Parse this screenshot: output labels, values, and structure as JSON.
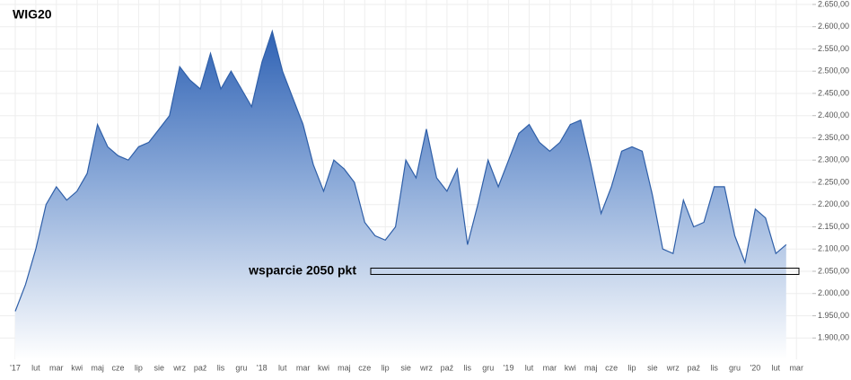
{
  "chart_data": {
    "type": "area",
    "title": "WIG20",
    "categories": [
      "'17",
      null,
      "lut",
      null,
      "mar",
      null,
      "kwi",
      null,
      "maj",
      null,
      "cze",
      null,
      "lip",
      null,
      "sie",
      null,
      "wrz",
      null,
      "paź",
      null,
      "lis",
      null,
      "gru",
      null,
      "'18",
      null,
      "lut",
      null,
      "mar",
      null,
      "kwi",
      null,
      "maj",
      null,
      "cze",
      null,
      "lip",
      null,
      "sie",
      null,
      "wrz",
      null,
      "paź",
      null,
      "lis",
      null,
      "gru",
      null,
      "'19",
      null,
      "lut",
      null,
      "mar",
      null,
      "kwi",
      null,
      "maj",
      null,
      "cze",
      null,
      "lip",
      null,
      "sie",
      null,
      "wrz",
      null,
      "paź",
      null,
      "lis",
      null,
      "gru",
      null,
      "'20",
      null,
      "lut",
      null,
      "mar"
    ],
    "values": [
      1960,
      2020,
      2100,
      2200,
      2240,
      2210,
      2230,
      2270,
      2380,
      2330,
      2310,
      2300,
      2330,
      2340,
      2370,
      2400,
      2510,
      2480,
      2460,
      2540,
      2460,
      2500,
      2460,
      2420,
      2520,
      2590,
      2500,
      2440,
      2380,
      2290,
      2230,
      2300,
      2280,
      2250,
      2160,
      2130,
      2120,
      2150,
      2300,
      2260,
      2370,
      2260,
      2230,
      2280,
      2110,
      2200,
      2300,
      2240,
      2300,
      2360,
      2380,
      2340,
      2320,
      2340,
      2380,
      2390,
      2290,
      2180,
      2240,
      2320,
      2330,
      2320,
      2220,
      2100,
      2090,
      2210,
      2150,
      2160,
      2240,
      2240,
      2130,
      2070,
      2190,
      2170,
      2090,
      2110,
      null
    ],
    "color": "#2f5fa8",
    "ylim": [
      1852,
      2660
    ],
    "yticks": [
      {
        "value": 1900,
        "label": "1.900,00"
      },
      {
        "value": 1950,
        "label": "1.950,00"
      },
      {
        "value": 2000,
        "label": "2.000,00"
      },
      {
        "value": 2050,
        "label": "2.050,00"
      },
      {
        "value": 2100,
        "label": "2.100,00"
      },
      {
        "value": 2150,
        "label": "2.150,00"
      },
      {
        "value": 2200,
        "label": "2.200,00"
      },
      {
        "value": 2250,
        "label": "2.250,00"
      },
      {
        "value": 2300,
        "label": "2.300,00"
      },
      {
        "value": 2350,
        "label": "2.350,00"
      },
      {
        "value": 2400,
        "label": "2.400,00"
      },
      {
        "value": 2450,
        "label": "2.450,00"
      },
      {
        "value": 2500,
        "label": "2.500,00"
      },
      {
        "value": 2550,
        "label": "2.550,00"
      },
      {
        "value": 2600,
        "label": "2.600,00"
      },
      {
        "value": 2650,
        "label": "2.650,00"
      }
    ],
    "grid": true,
    "annotation": {
      "text": "wsparcie 2050 pkt",
      "value": 2050
    }
  }
}
